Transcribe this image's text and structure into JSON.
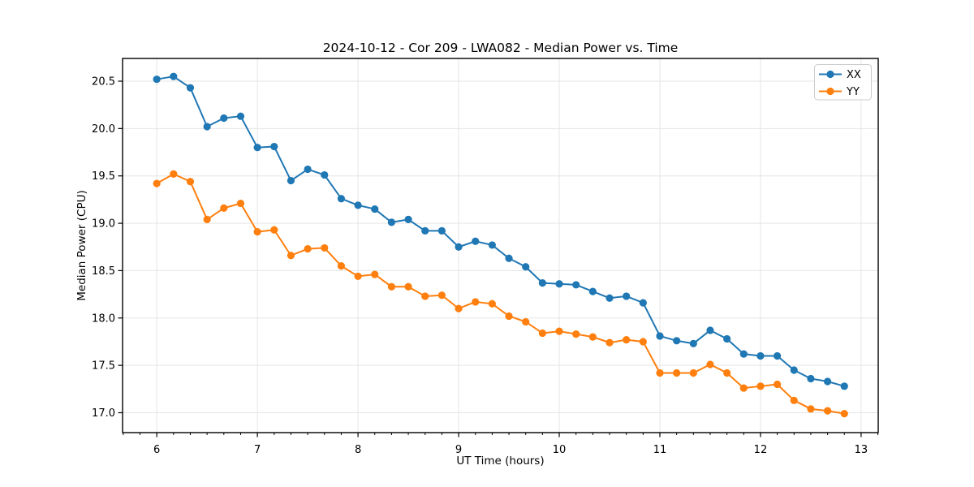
{
  "figure": {
    "background": "#ffffff"
  },
  "chart_data": {
    "type": "line",
    "title": "2024-10-12 - Cor 209 - LWA082 - Median Power vs. Time",
    "xlabel": "UT Time (hours)",
    "ylabel": "Median Power (CPU)",
    "grid": true,
    "legend_position": "upper right",
    "xlim": [
      5.66,
      13.17
    ],
    "ylim": [
      16.79,
      20.74
    ],
    "xticks": [
      6,
      7,
      8,
      9,
      10,
      11,
      12,
      13
    ],
    "xtick_labels": [
      "6",
      "7",
      "8",
      "9",
      "10",
      "11",
      "12",
      "13"
    ],
    "yticks": [
      17.0,
      17.5,
      18.0,
      18.5,
      19.0,
      19.5,
      20.0,
      20.5
    ],
    "ytick_labels": [
      "17.0",
      "17.5",
      "18.0",
      "18.5",
      "19.0",
      "19.5",
      "20.0",
      "20.5"
    ],
    "minor_xtick_step": 0.166667,
    "grid_color": "#e5e5e5",
    "x": [
      6.0,
      6.1667,
      6.3333,
      6.5,
      6.6667,
      6.8333,
      7.0,
      7.1667,
      7.3333,
      7.5,
      7.6667,
      7.8333,
      8.0,
      8.1667,
      8.3333,
      8.5,
      8.6667,
      8.8333,
      9.0,
      9.1667,
      9.3333,
      9.5,
      9.6667,
      9.8333,
      10.0,
      10.1667,
      10.3333,
      10.5,
      10.6667,
      10.8333,
      11.0,
      11.1667,
      11.3333,
      11.5,
      11.6667,
      11.8333,
      12.0,
      12.1667,
      12.3333,
      12.5,
      12.6667,
      12.8333
    ],
    "series": [
      {
        "name": "XX",
        "color": "#1f77b4",
        "values": [
          20.52,
          20.55,
          20.43,
          20.02,
          20.11,
          20.13,
          19.8,
          19.81,
          19.45,
          19.57,
          19.51,
          19.26,
          19.19,
          19.15,
          19.01,
          19.04,
          18.92,
          18.92,
          18.75,
          18.81,
          18.77,
          18.63,
          18.54,
          18.37,
          18.36,
          18.35,
          18.28,
          18.21,
          18.23,
          18.16,
          17.81,
          17.76,
          17.73,
          17.87,
          17.78,
          17.62,
          17.6,
          17.6,
          17.45,
          17.36,
          17.33,
          17.28
        ]
      },
      {
        "name": "YY",
        "color": "#ff7f0e",
        "values": [
          19.42,
          19.52,
          19.44,
          19.04,
          19.16,
          19.21,
          18.91,
          18.93,
          18.66,
          18.73,
          18.74,
          18.55,
          18.44,
          18.46,
          18.33,
          18.33,
          18.23,
          18.24,
          18.1,
          18.17,
          18.15,
          18.02,
          17.96,
          17.84,
          17.86,
          17.83,
          17.8,
          17.74,
          17.77,
          17.75,
          17.42,
          17.42,
          17.42,
          17.51,
          17.42,
          17.26,
          17.28,
          17.3,
          17.13,
          17.04,
          17.02,
          16.99
        ]
      }
    ]
  }
}
